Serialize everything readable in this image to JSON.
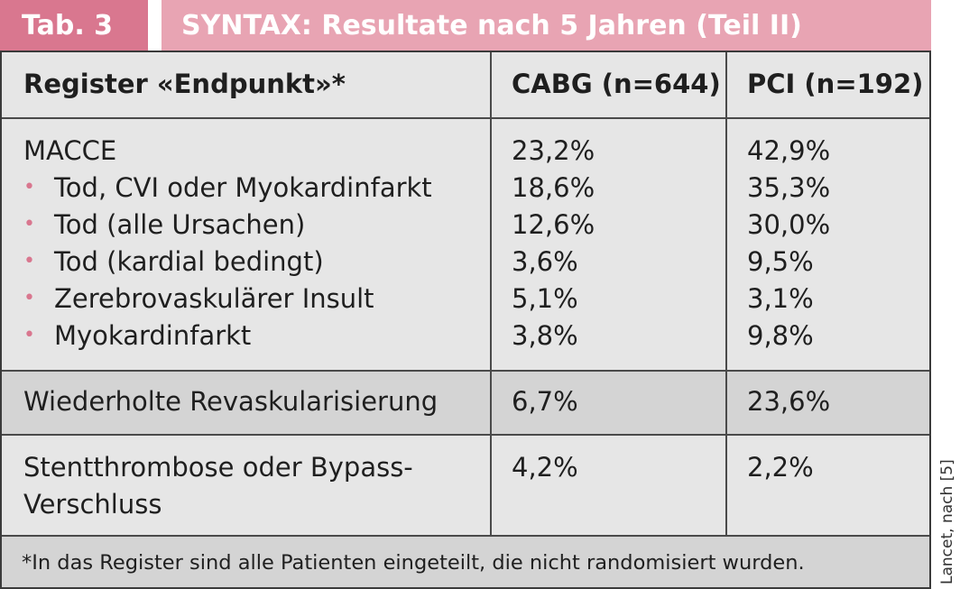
{
  "tab_label": "Tab. 3",
  "title": "SYNTAX: Resultate nach 5 Jahren (Teil II)",
  "headers": {
    "endpoint": "Register «Endpunkt»*",
    "cabg": "CABG (n=644)",
    "pci": "PCI (n=192)"
  },
  "macce": {
    "label": "MACCE",
    "cabg": "23,2%",
    "pci": "42,9%",
    "items": [
      {
        "label": "Tod, CVI oder Myokardinfarkt",
        "cabg": "18,6%",
        "pci": "35,3%"
      },
      {
        "label": "Tod (alle Ursachen)",
        "cabg": "12,6%",
        "pci": "30,0%"
      },
      {
        "label": "Tod (kardial bedingt)",
        "cabg": "3,6%",
        "pci": "9,5%"
      },
      {
        "label": "Zerebrovaskulärer Insult",
        "cabg": "5,1%",
        "pci": "3,1%"
      },
      {
        "label": "Myokardinfarkt",
        "cabg": "3,8%",
        "pci": "9,8%"
      }
    ]
  },
  "revasc": {
    "label": "Wiederholte Revaskularisierung",
    "cabg": "6,7%",
    "pci": "23,6%"
  },
  "stent": {
    "label_line1": "Stentthrombose oder Bypass-",
    "label_line2": "Verschluss",
    "cabg": "4,2%",
    "pci": "2,2%"
  },
  "footnote": "*In das Register sind alle Patienten eingeteilt, die nicht randomisiert wurden.",
  "source": "Lancet, nach [5]",
  "bullet_char": "•",
  "colors": {
    "accent": "#d9778f",
    "title_bg": "#e8a4b3",
    "table_bg": "#e6e6e6",
    "row_dark": "#d4d4d4"
  }
}
